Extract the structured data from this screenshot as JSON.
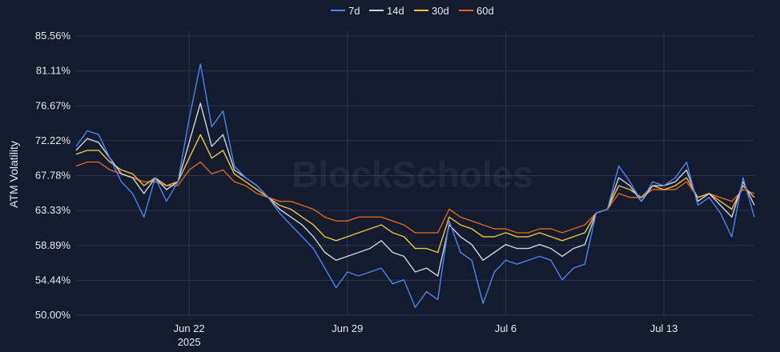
{
  "watermark": "BlockScholes",
  "chart_data": {
    "type": "line",
    "title": "",
    "xlabel": "",
    "ylabel": "ATM Volatility",
    "x_range": [
      "2025-06-17",
      "2025-07-17"
    ],
    "ylim": [
      50.0,
      85.56
    ],
    "y_ticks": [
      "50.00%",
      "54.44%",
      "58.89%",
      "63.33%",
      "67.78%",
      "72.22%",
      "76.67%",
      "81.11%",
      "85.56%"
    ],
    "y_tick_values": [
      50.0,
      54.44,
      58.89,
      63.33,
      67.78,
      72.22,
      76.67,
      81.11,
      85.56
    ],
    "x_ticks": [
      {
        "date": "2025-06-22",
        "label": "Jun 22",
        "sublabel": "2025"
      },
      {
        "date": "2025-06-29",
        "label": "Jun 29",
        "sublabel": ""
      },
      {
        "date": "2025-07-06",
        "label": "Jul 6",
        "sublabel": ""
      },
      {
        "date": "2025-07-13",
        "label": "Jul 13",
        "sublabel": ""
      }
    ],
    "grid": true,
    "legend_position": "top-center",
    "series": [
      {
        "name": "7d",
        "color": "#4d84f0",
        "points": [
          [
            "2025-06-17",
            71.5
          ],
          [
            "2025-06-17T12:00",
            73.5
          ],
          [
            "2025-06-18",
            73.0
          ],
          [
            "2025-06-18T12:00",
            70.0
          ],
          [
            "2025-06-19",
            67.0
          ],
          [
            "2025-06-19T12:00",
            65.5
          ],
          [
            "2025-06-20",
            62.5
          ],
          [
            "2025-06-20T12:00",
            67.5
          ],
          [
            "2025-06-21",
            64.5
          ],
          [
            "2025-06-21T12:00",
            67.0
          ],
          [
            "2025-06-22",
            75.0
          ],
          [
            "2025-06-22T12:00",
            82.0
          ],
          [
            "2025-06-23",
            74.0
          ],
          [
            "2025-06-23T12:00",
            76.0
          ],
          [
            "2025-06-24",
            69.0
          ],
          [
            "2025-06-24T12:00",
            67.5
          ],
          [
            "2025-06-25",
            66.5
          ],
          [
            "2025-06-25T12:00",
            65.0
          ],
          [
            "2025-06-26",
            63.0
          ],
          [
            "2025-06-26T12:00",
            61.5
          ],
          [
            "2025-06-27",
            60.0
          ],
          [
            "2025-06-27T12:00",
            58.5
          ],
          [
            "2025-06-28",
            56.0
          ],
          [
            "2025-06-28T12:00",
            53.5
          ],
          [
            "2025-06-29",
            55.5
          ],
          [
            "2025-06-29T12:00",
            55.0
          ],
          [
            "2025-06-30",
            55.5
          ],
          [
            "2025-06-30T12:00",
            56.0
          ],
          [
            "2025-07-01",
            54.0
          ],
          [
            "2025-07-01T12:00",
            54.5
          ],
          [
            "2025-07-02",
            51.0
          ],
          [
            "2025-07-02T12:00",
            53.0
          ],
          [
            "2025-07-03",
            52.0
          ],
          [
            "2025-07-03T12:00",
            62.0
          ],
          [
            "2025-07-04",
            58.0
          ],
          [
            "2025-07-04T12:00",
            57.0
          ],
          [
            "2025-07-05",
            51.5
          ],
          [
            "2025-07-05T12:00",
            55.5
          ],
          [
            "2025-07-06",
            57.0
          ],
          [
            "2025-07-06T12:00",
            56.5
          ],
          [
            "2025-07-07",
            57.0
          ],
          [
            "2025-07-07T12:00",
            57.5
          ],
          [
            "2025-07-08",
            57.0
          ],
          [
            "2025-07-08T12:00",
            54.5
          ],
          [
            "2025-07-09",
            56.0
          ],
          [
            "2025-07-09T12:00",
            56.5
          ],
          [
            "2025-07-10",
            63.0
          ],
          [
            "2025-07-10T12:00",
            63.5
          ],
          [
            "2025-07-11",
            69.0
          ],
          [
            "2025-07-11T12:00",
            67.0
          ],
          [
            "2025-07-12",
            64.5
          ],
          [
            "2025-07-12T12:00",
            67.0
          ],
          [
            "2025-07-13",
            66.5
          ],
          [
            "2025-07-13T12:00",
            67.5
          ],
          [
            "2025-07-14",
            69.5
          ],
          [
            "2025-07-14T12:00",
            64.0
          ],
          [
            "2025-07-15",
            65.0
          ],
          [
            "2025-07-15T12:00",
            63.0
          ],
          [
            "2025-07-16",
            60.0
          ],
          [
            "2025-07-16T12:00",
            67.5
          ],
          [
            "2025-07-17",
            62.5
          ]
        ]
      },
      {
        "name": "14d",
        "color": "#d0d4dc",
        "points": [
          [
            "2025-06-17",
            71.0
          ],
          [
            "2025-06-17T12:00",
            72.5
          ],
          [
            "2025-06-18",
            72.0
          ],
          [
            "2025-06-18T12:00",
            70.0
          ],
          [
            "2025-06-19",
            68.0
          ],
          [
            "2025-06-19T12:00",
            67.5
          ],
          [
            "2025-06-20",
            65.5
          ],
          [
            "2025-06-20T12:00",
            67.5
          ],
          [
            "2025-06-21",
            66.0
          ],
          [
            "2025-06-21T12:00",
            67.0
          ],
          [
            "2025-06-22",
            72.0
          ],
          [
            "2025-06-22T12:00",
            77.0
          ],
          [
            "2025-06-23",
            71.5
          ],
          [
            "2025-06-23T12:00",
            73.0
          ],
          [
            "2025-06-24",
            68.5
          ],
          [
            "2025-06-24T12:00",
            67.5
          ],
          [
            "2025-06-25",
            66.5
          ],
          [
            "2025-06-25T12:00",
            65.0
          ],
          [
            "2025-06-26",
            63.5
          ],
          [
            "2025-06-26T12:00",
            62.5
          ],
          [
            "2025-06-27",
            61.5
          ],
          [
            "2025-06-27T12:00",
            60.0
          ],
          [
            "2025-06-28",
            58.0
          ],
          [
            "2025-06-28T12:00",
            57.0
          ],
          [
            "2025-06-29",
            57.5
          ],
          [
            "2025-06-29T12:00",
            58.0
          ],
          [
            "2025-06-30",
            58.5
          ],
          [
            "2025-06-30T12:00",
            59.5
          ],
          [
            "2025-07-01",
            58.0
          ],
          [
            "2025-07-01T12:00",
            57.5
          ],
          [
            "2025-07-02",
            55.5
          ],
          [
            "2025-07-02T12:00",
            56.0
          ],
          [
            "2025-07-03",
            55.0
          ],
          [
            "2025-07-03T12:00",
            61.5
          ],
          [
            "2025-07-04",
            60.0
          ],
          [
            "2025-07-04T12:00",
            59.0
          ],
          [
            "2025-07-05",
            57.0
          ],
          [
            "2025-07-05T12:00",
            58.0
          ],
          [
            "2025-07-06",
            59.0
          ],
          [
            "2025-07-06T12:00",
            58.5
          ],
          [
            "2025-07-07",
            58.5
          ],
          [
            "2025-07-07T12:00",
            59.0
          ],
          [
            "2025-07-08",
            58.5
          ],
          [
            "2025-07-08T12:00",
            57.5
          ],
          [
            "2025-07-09",
            58.5
          ],
          [
            "2025-07-09T12:00",
            59.0
          ],
          [
            "2025-07-10",
            63.0
          ],
          [
            "2025-07-10T12:00",
            63.5
          ],
          [
            "2025-07-11",
            67.5
          ],
          [
            "2025-07-11T12:00",
            66.5
          ],
          [
            "2025-07-12",
            64.5
          ],
          [
            "2025-07-12T12:00",
            66.5
          ],
          [
            "2025-07-13",
            66.5
          ],
          [
            "2025-07-13T12:00",
            67.0
          ],
          [
            "2025-07-14",
            68.5
          ],
          [
            "2025-07-14T12:00",
            64.5
          ],
          [
            "2025-07-15",
            65.5
          ],
          [
            "2025-07-15T12:00",
            64.0
          ],
          [
            "2025-07-16",
            62.5
          ],
          [
            "2025-07-16T12:00",
            67.0
          ],
          [
            "2025-07-17",
            64.0
          ]
        ]
      },
      {
        "name": "30d",
        "color": "#f4c242",
        "points": [
          [
            "2025-06-17",
            70.5
          ],
          [
            "2025-06-17T12:00",
            71.0
          ],
          [
            "2025-06-18",
            71.0
          ],
          [
            "2025-06-18T12:00",
            69.5
          ],
          [
            "2025-06-19",
            68.5
          ],
          [
            "2025-06-19T12:00",
            68.0
          ],
          [
            "2025-06-20",
            66.5
          ],
          [
            "2025-06-20T12:00",
            67.5
          ],
          [
            "2025-06-21",
            66.5
          ],
          [
            "2025-06-21T12:00",
            67.0
          ],
          [
            "2025-06-22",
            70.0
          ],
          [
            "2025-06-22T12:00",
            73.0
          ],
          [
            "2025-06-23",
            70.0
          ],
          [
            "2025-06-23T12:00",
            71.0
          ],
          [
            "2025-06-24",
            68.0
          ],
          [
            "2025-06-24T12:00",
            67.0
          ],
          [
            "2025-06-25",
            66.0
          ],
          [
            "2025-06-25T12:00",
            65.0
          ],
          [
            "2025-06-26",
            64.0
          ],
          [
            "2025-06-26T12:00",
            63.5
          ],
          [
            "2025-06-27",
            62.5
          ],
          [
            "2025-06-27T12:00",
            61.5
          ],
          [
            "2025-06-28",
            60.0
          ],
          [
            "2025-06-28T12:00",
            59.5
          ],
          [
            "2025-06-29",
            60.0
          ],
          [
            "2025-06-29T12:00",
            60.5
          ],
          [
            "2025-06-30",
            61.0
          ],
          [
            "2025-06-30T12:00",
            61.5
          ],
          [
            "2025-07-01",
            60.5
          ],
          [
            "2025-07-01T12:00",
            60.0
          ],
          [
            "2025-07-02",
            58.5
          ],
          [
            "2025-07-02T12:00",
            58.5
          ],
          [
            "2025-07-03",
            58.0
          ],
          [
            "2025-07-03T12:00",
            62.5
          ],
          [
            "2025-07-04",
            61.5
          ],
          [
            "2025-07-04T12:00",
            61.0
          ],
          [
            "2025-07-05",
            60.0
          ],
          [
            "2025-07-05T12:00",
            60.0
          ],
          [
            "2025-07-06",
            60.5
          ],
          [
            "2025-07-06T12:00",
            60.0
          ],
          [
            "2025-07-07",
            60.0
          ],
          [
            "2025-07-07T12:00",
            60.5
          ],
          [
            "2025-07-08",
            60.0
          ],
          [
            "2025-07-08T12:00",
            59.5
          ],
          [
            "2025-07-09",
            60.0
          ],
          [
            "2025-07-09T12:00",
            60.5
          ],
          [
            "2025-07-10",
            63.0
          ],
          [
            "2025-07-10T12:00",
            63.5
          ],
          [
            "2025-07-11",
            66.5
          ],
          [
            "2025-07-11T12:00",
            66.0
          ],
          [
            "2025-07-12",
            65.0
          ],
          [
            "2025-07-12T12:00",
            66.5
          ],
          [
            "2025-07-13",
            66.0
          ],
          [
            "2025-07-13T12:00",
            66.5
          ],
          [
            "2025-07-14",
            67.5
          ],
          [
            "2025-07-14T12:00",
            65.0
          ],
          [
            "2025-07-15",
            65.5
          ],
          [
            "2025-07-15T12:00",
            64.5
          ],
          [
            "2025-07-16",
            63.5
          ],
          [
            "2025-07-16T12:00",
            66.5
          ],
          [
            "2025-07-17",
            65.0
          ]
        ]
      },
      {
        "name": "60d",
        "color": "#e0651f",
        "points": [
          [
            "2025-06-17",
            69.0
          ],
          [
            "2025-06-17T12:00",
            69.5
          ],
          [
            "2025-06-18",
            69.5
          ],
          [
            "2025-06-18T12:00",
            68.5
          ],
          [
            "2025-06-19",
            68.0
          ],
          [
            "2025-06-19T12:00",
            67.5
          ],
          [
            "2025-06-20",
            67.0
          ],
          [
            "2025-06-20T12:00",
            67.0
          ],
          [
            "2025-06-21",
            66.5
          ],
          [
            "2025-06-21T12:00",
            66.5
          ],
          [
            "2025-06-22",
            68.5
          ],
          [
            "2025-06-22T12:00",
            69.5
          ],
          [
            "2025-06-23",
            68.0
          ],
          [
            "2025-06-23T12:00",
            68.5
          ],
          [
            "2025-06-24",
            67.0
          ],
          [
            "2025-06-24T12:00",
            66.5
          ],
          [
            "2025-06-25",
            65.5
          ],
          [
            "2025-06-25T12:00",
            65.0
          ],
          [
            "2025-06-26",
            64.5
          ],
          [
            "2025-06-26T12:00",
            64.5
          ],
          [
            "2025-06-27",
            64.0
          ],
          [
            "2025-06-27T12:00",
            63.5
          ],
          [
            "2025-06-28",
            62.5
          ],
          [
            "2025-06-28T12:00",
            62.0
          ],
          [
            "2025-06-29",
            62.0
          ],
          [
            "2025-06-29T12:00",
            62.5
          ],
          [
            "2025-06-30",
            62.5
          ],
          [
            "2025-06-30T12:00",
            62.5
          ],
          [
            "2025-07-01",
            62.0
          ],
          [
            "2025-07-01T12:00",
            61.5
          ],
          [
            "2025-07-02",
            60.5
          ],
          [
            "2025-07-02T12:00",
            60.5
          ],
          [
            "2025-07-03",
            60.5
          ],
          [
            "2025-07-03T12:00",
            63.5
          ],
          [
            "2025-07-04",
            62.5
          ],
          [
            "2025-07-04T12:00",
            62.0
          ],
          [
            "2025-07-05",
            61.5
          ],
          [
            "2025-07-05T12:00",
            61.0
          ],
          [
            "2025-07-06",
            61.0
          ],
          [
            "2025-07-06T12:00",
            60.5
          ],
          [
            "2025-07-07",
            60.5
          ],
          [
            "2025-07-07T12:00",
            61.0
          ],
          [
            "2025-07-08",
            61.0
          ],
          [
            "2025-07-08T12:00",
            60.5
          ],
          [
            "2025-07-09",
            61.0
          ],
          [
            "2025-07-09T12:00",
            61.5
          ],
          [
            "2025-07-10",
            63.0
          ],
          [
            "2025-07-10T12:00",
            63.5
          ],
          [
            "2025-07-11",
            65.5
          ],
          [
            "2025-07-11T12:00",
            65.0
          ],
          [
            "2025-07-12",
            65.0
          ],
          [
            "2025-07-12T12:00",
            66.0
          ],
          [
            "2025-07-13",
            66.0
          ],
          [
            "2025-07-13T12:00",
            66.0
          ],
          [
            "2025-07-14",
            67.0
          ],
          [
            "2025-07-14T12:00",
            65.0
          ],
          [
            "2025-07-15",
            65.5
          ],
          [
            "2025-07-15T12:00",
            65.0
          ],
          [
            "2025-07-16",
            64.5
          ],
          [
            "2025-07-16T12:00",
            66.0
          ],
          [
            "2025-07-17",
            65.5
          ]
        ]
      }
    ]
  }
}
